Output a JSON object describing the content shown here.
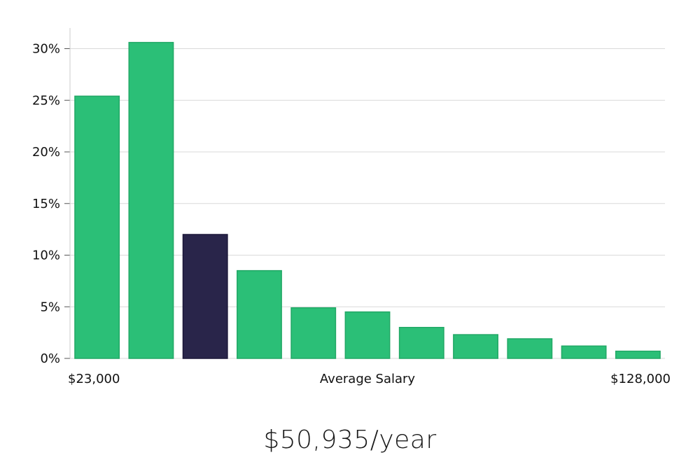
{
  "chart_data": {
    "type": "bar",
    "categories": [
      "",
      "",
      "",
      "",
      "",
      "",
      "",
      "",
      "",
      "",
      ""
    ],
    "values": [
      25.4,
      30.6,
      12.0,
      8.5,
      4.9,
      4.5,
      3.0,
      2.3,
      1.9,
      1.2,
      0.7
    ],
    "highlight_index": 2,
    "ylim": [
      0,
      32
    ],
    "yticks": [
      0,
      5,
      10,
      15,
      20,
      25,
      30
    ],
    "ytick_labels": [
      "0%",
      "5%",
      "10%",
      "15%",
      "20%",
      "25%",
      "30%"
    ],
    "x_start_label": "$23,000",
    "x_end_label": "$128,000",
    "xlabel": "Average Salary",
    "grid": true,
    "colors": {
      "bar": "#2bbf77",
      "highlight": "#29254a",
      "grid": "#d9d9d9",
      "axis": "#cccccc"
    }
  },
  "salary_text": "$50,935/year"
}
